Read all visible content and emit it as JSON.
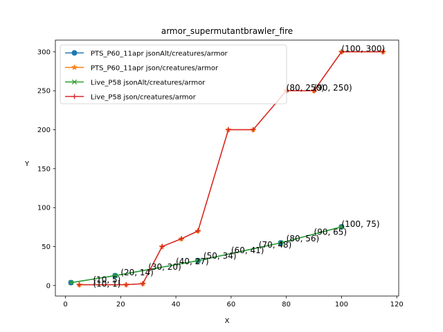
{
  "chart_data": {
    "type": "line",
    "title": "armor_supermutantbrawler_fire",
    "xlabel": "X",
    "ylabel": "Y",
    "xlim": [
      -3.65,
      120.7
    ],
    "ylim": [
      -13.5,
      315
    ],
    "xticks": [
      0,
      20,
      40,
      60,
      80,
      100,
      120
    ],
    "yticks": [
      0,
      50,
      100,
      150,
      200,
      250,
      300
    ],
    "legend_position": "upper-left",
    "grid": false,
    "series": [
      {
        "name": "PTS_P60_11apr jsonAlt/creatures/armor",
        "color": "#1f77b4",
        "marker": "circle",
        "x": [
          2,
          18,
          48,
          78,
          100
        ],
        "y": [
          3.7,
          12.7,
          31.9,
          54.8,
          75.3
        ]
      },
      {
        "name": "PTS_P60_11apr json/creatures/armor",
        "color": "#ff7f0e",
        "marker": "star",
        "x": [
          5,
          22,
          28,
          35,
          42,
          48,
          59,
          68,
          80,
          90,
          100,
          115
        ],
        "y": [
          1,
          1,
          2.3,
          50,
          60,
          70,
          200,
          200,
          250,
          250,
          300,
          300
        ]
      },
      {
        "name": "Live_P58 jsonAlt/creatures/armor",
        "color": "#2ca02c",
        "marker": "x",
        "x": [
          2,
          18,
          48,
          78,
          100
        ],
        "y": [
          3.7,
          12.7,
          31.9,
          54.8,
          75.3
        ]
      },
      {
        "name": "Live_P58 json/creatures/armor",
        "color": "#d62728",
        "marker": "plus",
        "x": [
          5,
          22,
          28,
          35,
          42,
          48,
          59,
          68,
          80,
          90,
          100,
          115
        ],
        "y": [
          1,
          1,
          2.3,
          50,
          60,
          70,
          200,
          200,
          250,
          250,
          300,
          300
        ]
      }
    ],
    "annotations": [
      {
        "text": "(10, 5)",
        "x": 10,
        "y": 3.9
      },
      {
        "text": "(10, 1)",
        "x": 10,
        "y": -1.6
      },
      {
        "text": "(20, 14)",
        "x": 20,
        "y": 13.2
      },
      {
        "text": "(30, 20)",
        "x": 30,
        "y": 20.3
      },
      {
        "text": "(40, 27)",
        "x": 40,
        "y": 27.3
      },
      {
        "text": "(50, 34)",
        "x": 50,
        "y": 34.5
      },
      {
        "text": "(60, 41)",
        "x": 60,
        "y": 41.6
      },
      {
        "text": "(70, 48)",
        "x": 70,
        "y": 48.8
      },
      {
        "text": "(80, 56)",
        "x": 80,
        "y": 56.5
      },
      {
        "text": "(90, 65)",
        "x": 90,
        "y": 65
      },
      {
        "text": "(100, 75)",
        "x": 100,
        "y": 75.2
      },
      {
        "text": "(80, 250)",
        "x": 80,
        "y": 250.3
      },
      {
        "text": "(90, 250)",
        "x": 90,
        "y": 250.3
      },
      {
        "text": "(100, 300)",
        "x": 100,
        "y": 300.3
      }
    ]
  }
}
